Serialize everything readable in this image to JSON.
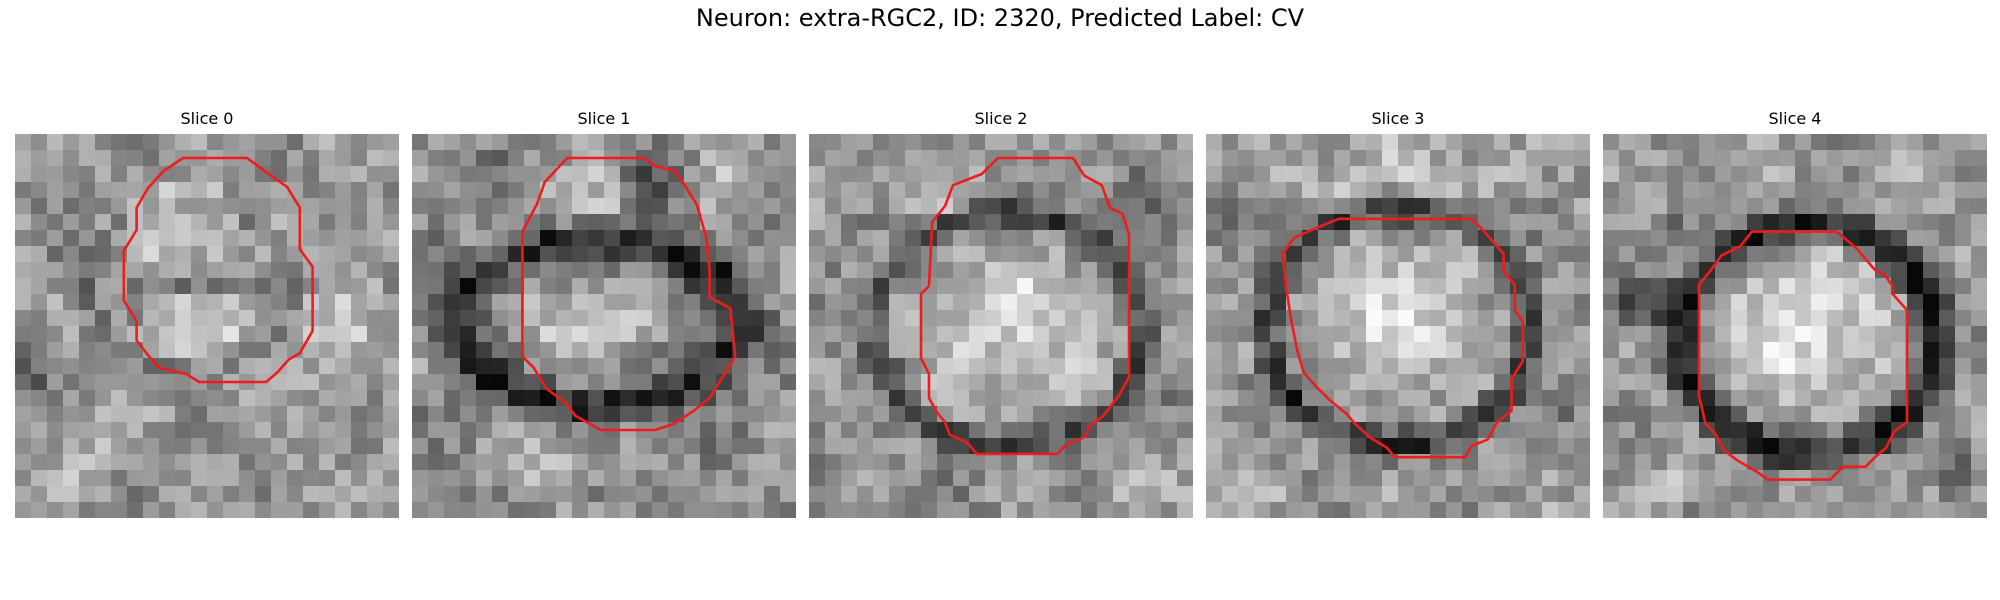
{
  "figure": {
    "title": "Neuron: extra-RGC2, ID: 2320, Predicted Label: CV"
  },
  "colors": {
    "contour": "#ee1c1c",
    "background": "#ffffff"
  },
  "panels": [
    {
      "title": "Slice 0",
      "membrane": "weak double band",
      "contour_shape": "octagon"
    },
    {
      "title": "Slice 1",
      "membrane": "strong dark kidney-shaped ring",
      "contour_shape": "octagon"
    },
    {
      "title": "Slice 2",
      "membrane": "dark ring around pale oval",
      "contour_shape": "octagon"
    },
    {
      "title": "Slice 3",
      "membrane": "dark ring around pale rounded cell",
      "contour_shape": "octagon"
    },
    {
      "title": "Slice 4",
      "membrane": "thick dark ring around pale cell",
      "contour_shape": "octagon"
    }
  ]
}
